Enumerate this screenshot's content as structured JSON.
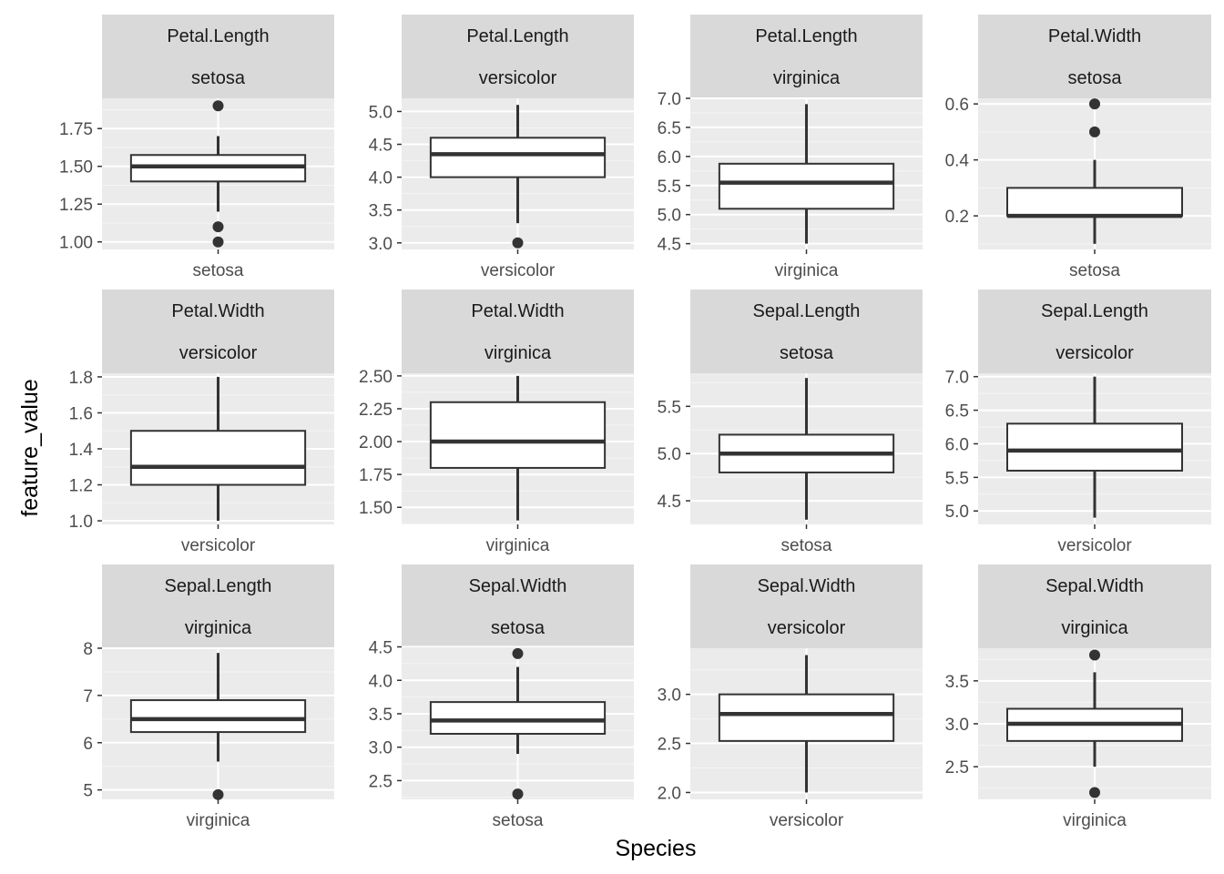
{
  "chart_data": {
    "type": "boxplot",
    "facet_layout": "3x4",
    "xlabel": "Species",
    "ylabel": "feature_value",
    "grid": true,
    "panels": [
      {
        "feature": "Petal.Length",
        "species": "setosa",
        "ylim": [
          0.95,
          1.95
        ],
        "yticks": [
          1.0,
          1.25,
          1.5,
          1.75
        ],
        "ytick_labels": [
          "1.00",
          "1.25",
          "1.50",
          "1.75"
        ],
        "box": {
          "lower_whisker": 1.2,
          "q1": 1.4,
          "median": 1.5,
          "q3": 1.575,
          "upper_whisker": 1.7,
          "outliers": [
            1.0,
            1.1,
            1.9
          ]
        }
      },
      {
        "feature": "Petal.Length",
        "species": "versicolor",
        "ylim": [
          2.9,
          5.2
        ],
        "yticks": [
          3.0,
          3.5,
          4.0,
          4.5,
          5.0
        ],
        "ytick_labels": [
          "3.0",
          "3.5",
          "4.0",
          "4.5",
          "5.0"
        ],
        "box": {
          "lower_whisker": 3.3,
          "q1": 4.0,
          "median": 4.35,
          "q3": 4.6,
          "upper_whisker": 5.1,
          "outliers": [
            3.0
          ]
        }
      },
      {
        "feature": "Petal.Length",
        "species": "virginica",
        "ylim": [
          4.4,
          7.0
        ],
        "yticks": [
          4.5,
          5.0,
          5.5,
          6.0,
          6.5,
          7.0
        ],
        "ytick_labels": [
          "4.5",
          "5.0",
          "5.5",
          "6.0",
          "6.5",
          "7.0"
        ],
        "box": {
          "lower_whisker": 4.5,
          "q1": 5.1,
          "median": 5.55,
          "q3": 5.875,
          "upper_whisker": 6.9,
          "outliers": []
        }
      },
      {
        "feature": "Petal.Width",
        "species": "setosa",
        "ylim": [
          0.08,
          0.62
        ],
        "yticks": [
          0.2,
          0.4,
          0.6
        ],
        "ytick_labels": [
          "0.2",
          "0.4",
          "0.6"
        ],
        "box": {
          "lower_whisker": 0.1,
          "q1": 0.2,
          "median": 0.2,
          "q3": 0.3,
          "upper_whisker": 0.4,
          "outliers": [
            0.5,
            0.6
          ]
        }
      },
      {
        "feature": "Petal.Width",
        "species": "versicolor",
        "ylim": [
          0.98,
          1.82
        ],
        "yticks": [
          1.0,
          1.2,
          1.4,
          1.6,
          1.8
        ],
        "ytick_labels": [
          "1.0",
          "1.2",
          "1.4",
          "1.6",
          "1.8"
        ],
        "box": {
          "lower_whisker": 1.0,
          "q1": 1.2,
          "median": 1.3,
          "q3": 1.5,
          "upper_whisker": 1.8,
          "outliers": []
        }
      },
      {
        "feature": "Petal.Width",
        "species": "virginica",
        "ylim": [
          1.37,
          2.52
        ],
        "yticks": [
          1.5,
          1.75,
          2.0,
          2.25,
          2.5
        ],
        "ytick_labels": [
          "1.50",
          "1.75",
          "2.00",
          "2.25",
          "2.50"
        ],
        "box": {
          "lower_whisker": 1.4,
          "q1": 1.8,
          "median": 2.0,
          "q3": 2.3,
          "upper_whisker": 2.5,
          "outliers": []
        }
      },
      {
        "feature": "Sepal.Length",
        "species": "setosa",
        "ylim": [
          4.25,
          5.85
        ],
        "yticks": [
          4.5,
          5.0,
          5.5
        ],
        "ytick_labels": [
          "4.5",
          "5.0",
          "5.5"
        ],
        "box": {
          "lower_whisker": 4.3,
          "q1": 4.8,
          "median": 5.0,
          "q3": 5.2,
          "upper_whisker": 5.8,
          "outliers": []
        }
      },
      {
        "feature": "Sepal.Length",
        "species": "versicolor",
        "ylim": [
          4.8,
          7.05
        ],
        "yticks": [
          5.0,
          5.5,
          6.0,
          6.5,
          7.0
        ],
        "ytick_labels": [
          "5.0",
          "5.5",
          "6.0",
          "6.5",
          "7.0"
        ],
        "box": {
          "lower_whisker": 4.9,
          "q1": 5.6,
          "median": 5.9,
          "q3": 6.3,
          "upper_whisker": 7.0,
          "outliers": []
        }
      },
      {
        "feature": "Sepal.Length",
        "species": "virginica",
        "ylim": [
          4.8,
          8.0
        ],
        "yticks": [
          5,
          6,
          7,
          8
        ],
        "ytick_labels": [
          "5",
          "6",
          "7",
          "8"
        ],
        "box": {
          "lower_whisker": 5.6,
          "q1": 6.225,
          "median": 6.5,
          "q3": 6.9,
          "upper_whisker": 7.9,
          "outliers": [
            4.9
          ]
        }
      },
      {
        "feature": "Sepal.Width",
        "species": "setosa",
        "ylim": [
          2.22,
          4.48
        ],
        "yticks": [
          2.5,
          3.0,
          3.5,
          4.0,
          4.5
        ],
        "ytick_labels": [
          "2.5",
          "3.0",
          "3.5",
          "4.0",
          "4.5"
        ],
        "box": {
          "lower_whisker": 2.9,
          "q1": 3.2,
          "median": 3.4,
          "q3": 3.675,
          "upper_whisker": 4.2,
          "outliers": [
            2.3,
            4.4
          ]
        }
      },
      {
        "feature": "Sepal.Width",
        "species": "versicolor",
        "ylim": [
          1.93,
          3.47
        ],
        "yticks": [
          2.0,
          2.5,
          3.0
        ],
        "ytick_labels": [
          "2.0",
          "2.5",
          "3.0"
        ],
        "box": {
          "lower_whisker": 2.0,
          "q1": 2.525,
          "median": 2.8,
          "q3": 3.0,
          "upper_whisker": 3.4,
          "outliers": []
        }
      },
      {
        "feature": "Sepal.Width",
        "species": "virginica",
        "ylim": [
          2.12,
          3.88
        ],
        "yticks": [
          2.5,
          3.0,
          3.5
        ],
        "ytick_labels": [
          "2.5",
          "3.0",
          "3.5"
        ],
        "box": {
          "lower_whisker": 2.5,
          "q1": 2.8,
          "median": 3.0,
          "q3": 3.175,
          "upper_whisker": 3.6,
          "outliers": [
            2.2,
            3.8
          ]
        }
      }
    ]
  },
  "colors": {
    "panel_background": "#ebebeb",
    "strip_background": "#d9d9d9",
    "grid_major": "#ffffff",
    "grid_minor": "#f5f5f5",
    "box_stroke": "#333333",
    "box_fill": "#ffffff",
    "outlier": "#333333"
  }
}
